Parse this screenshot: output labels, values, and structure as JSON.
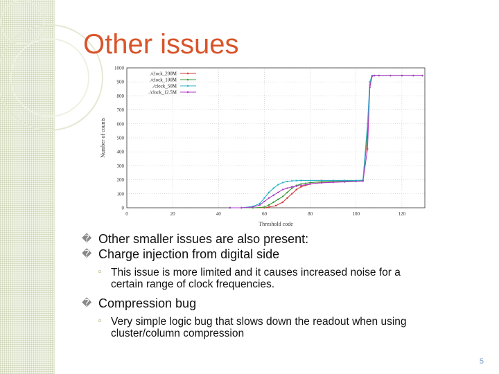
{
  "slide": {
    "title": "Other issues",
    "page_number": "5",
    "bullets": [
      {
        "text": "Other smaller issues are also present:",
        "marker": "�"
      },
      {
        "text": "Charge injection from digital side",
        "marker": "�"
      },
      {
        "text_lines": [
          "This issue is more limited and it causes increased noise for a",
          "certain range of clock frequencies."
        ],
        "marker": "◦"
      },
      {
        "text": "Compression bug",
        "marker": "�"
      },
      {
        "text_lines": [
          "Very simple logic bug that slows down the readout when using",
          "cluster/column compression"
        ],
        "marker": "◦"
      }
    ]
  },
  "chart_data": {
    "type": "line",
    "title": "",
    "xlabel": "Threshold code",
    "ylabel": "Number of counts",
    "xlim": [
      0,
      130
    ],
    "ylim": [
      0,
      1000
    ],
    "xticks": [
      0,
      20,
      40,
      60,
      80,
      100,
      120
    ],
    "yticks": [
      0,
      100,
      200,
      300,
      400,
      500,
      600,
      700,
      800,
      900,
      1000
    ],
    "grid": true,
    "legend_position": "top-left",
    "series": [
      {
        "name": "./clock_200M",
        "color": "#d23b3b",
        "x": [
          45,
          50,
          55,
          60,
          62,
          65,
          68,
          70,
          72,
          74,
          76,
          78,
          80,
          85,
          90,
          95,
          100,
          103,
          105,
          106,
          107,
          108,
          110,
          115,
          120,
          125,
          129
        ],
        "y": [
          0,
          0,
          0,
          0,
          5,
          15,
          40,
          70,
          100,
          130,
          150,
          160,
          170,
          180,
          185,
          188,
          190,
          195,
          520,
          880,
          940,
          945,
          945,
          945,
          945,
          945,
          945
        ]
      },
      {
        "name": "./clock_100M",
        "color": "#3a9a3a",
        "x": [
          45,
          50,
          55,
          60,
          62,
          64,
          66,
          68,
          70,
          72,
          74,
          76,
          78,
          80,
          85,
          90,
          95,
          100,
          103,
          105,
          106,
          107,
          108,
          110,
          115,
          120,
          125,
          129
        ],
        "y": [
          0,
          0,
          0,
          5,
          20,
          40,
          60,
          80,
          110,
          140,
          160,
          170,
          175,
          180,
          185,
          188,
          190,
          190,
          195,
          560,
          870,
          940,
          945,
          945,
          945,
          945,
          945,
          945
        ]
      },
      {
        "name": "./clock_50M",
        "color": "#2bb3c8",
        "x": [
          45,
          50,
          55,
          58,
          60,
          62,
          64,
          66,
          68,
          70,
          72,
          74,
          76,
          80,
          85,
          90,
          95,
          100,
          103,
          105,
          106,
          107,
          108,
          110,
          115,
          120,
          125,
          129
        ],
        "y": [
          0,
          0,
          10,
          30,
          70,
          110,
          140,
          165,
          180,
          188,
          192,
          194,
          195,
          195,
          195,
          195,
          195,
          195,
          198,
          600,
          900,
          945,
          945,
          945,
          945,
          945,
          945,
          945
        ]
      },
      {
        "name": "./clock_12.5M",
        "color": "#b03cc9",
        "x": [
          45,
          50,
          55,
          58,
          60,
          62,
          64,
          66,
          68,
          70,
          72,
          74,
          76,
          80,
          85,
          90,
          95,
          100,
          103,
          105,
          106,
          107,
          108,
          110,
          115,
          120,
          125,
          129
        ],
        "y": [
          0,
          0,
          5,
          20,
          45,
          70,
          90,
          110,
          130,
          140,
          150,
          155,
          160,
          170,
          178,
          182,
          185,
          188,
          190,
          420,
          860,
          940,
          945,
          945,
          945,
          945,
          945,
          945
        ]
      }
    ]
  }
}
